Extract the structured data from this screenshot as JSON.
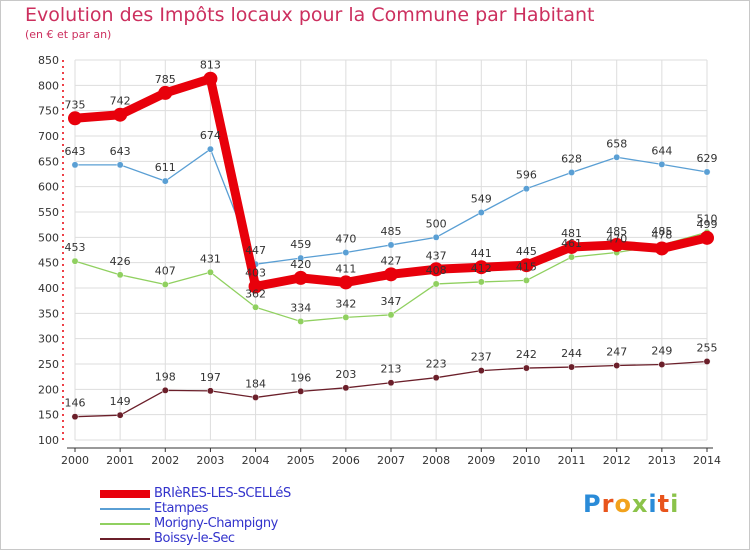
{
  "title": "Evolution des Impôts locaux pour la Commune par Habitant",
  "subtitle": "(en € et par an)",
  "logo": "Proxiti",
  "chart_data": {
    "type": "line",
    "x": [
      "2000",
      "2001",
      "2002",
      "2003",
      "2004",
      "2005",
      "2006",
      "2007",
      "2008",
      "2009",
      "2010",
      "2011",
      "2012",
      "2013",
      "2014"
    ],
    "ylim": [
      100,
      850
    ],
    "yticks": [
      100,
      150,
      200,
      250,
      300,
      350,
      400,
      450,
      500,
      550,
      600,
      650,
      700,
      750,
      800,
      850
    ],
    "grid": true,
    "legend_position": "bottom-left",
    "series": [
      {
        "name": "BRIèRES-LES-SCELLéS",
        "color": "#e8000b",
        "labels": [
          "735",
          "742",
          "785",
          "813",
          "403",
          "420",
          "411",
          "427",
          "437",
          "441",
          "445",
          "481",
          "485",
          "478",
          "499"
        ],
        "values": [
          735,
          742,
          785,
          813,
          403,
          420,
          411,
          427,
          437,
          441,
          445,
          481,
          485,
          478,
          499
        ]
      },
      {
        "name": "Etampes",
        "color": "#5a9fd4",
        "labels": [
          "643",
          "643",
          "611",
          "674",
          "447",
          "459",
          "470",
          "485",
          "500",
          "549",
          "596",
          "628",
          "658",
          "644",
          "629"
        ],
        "values": [
          643,
          643,
          611,
          674,
          447,
          459,
          470,
          485,
          500,
          549,
          596,
          628,
          658,
          644,
          629
        ]
      },
      {
        "name": "Morigny-Champigny",
        "color": "#90d060",
        "labels": [
          "453",
          "426",
          "407",
          "431",
          "362",
          "334",
          "342",
          "347",
          "408",
          "412",
          "415",
          "461",
          "470",
          "485",
          "510"
        ],
        "values": [
          453,
          426,
          407,
          431,
          362,
          334,
          342,
          347,
          408,
          412,
          415,
          461,
          470,
          485,
          510
        ]
      },
      {
        "name": "Boissy-le-Sec",
        "color": "#6b1f2a",
        "labels": [
          "146",
          "149",
          "198",
          "197",
          "184",
          "196",
          "203",
          "213",
          "223",
          "237",
          "242",
          "244",
          "247",
          "249",
          "255"
        ],
        "values": [
          146,
          149,
          198,
          197,
          184,
          196,
          203,
          213,
          223,
          237,
          242,
          244,
          247,
          249,
          255
        ]
      }
    ]
  }
}
